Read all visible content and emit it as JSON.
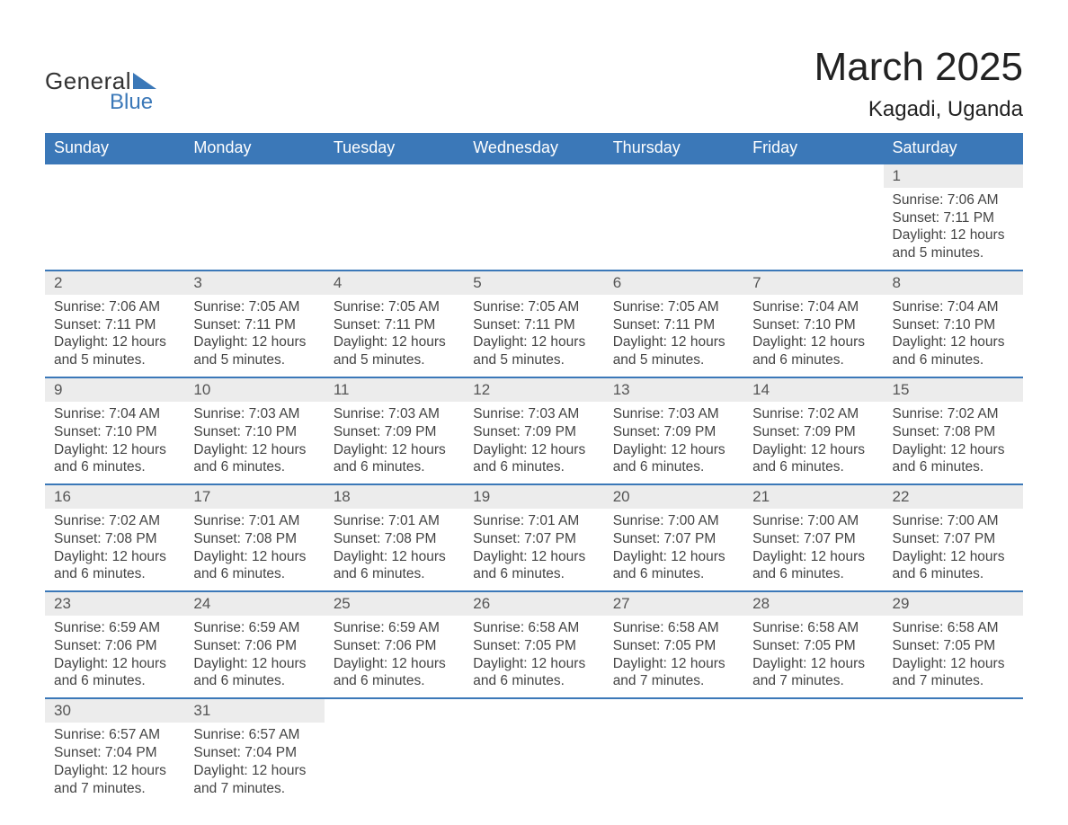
{
  "logo": {
    "word1": "General",
    "word2": "Blue",
    "color_general": "#333333",
    "color_blue": "#3b78b8"
  },
  "title": "March 2025",
  "location": "Kagadi, Uganda",
  "header_bg": "#3b78b8",
  "header_fg": "#ffffff",
  "daynum_bg": "#ececec",
  "row_border": "#3b78b8",
  "text_color": "#444444",
  "columns": [
    "Sunday",
    "Monday",
    "Tuesday",
    "Wednesday",
    "Thursday",
    "Friday",
    "Saturday"
  ],
  "weeks": [
    {
      "nums": [
        "",
        "",
        "",
        "",
        "",
        "",
        "1"
      ],
      "data": [
        "",
        "",
        "",
        "",
        "",
        "",
        "Sunrise: 7:06 AM\nSunset: 7:11 PM\nDaylight: 12 hours and 5 minutes."
      ]
    },
    {
      "nums": [
        "2",
        "3",
        "4",
        "5",
        "6",
        "7",
        "8"
      ],
      "data": [
        "Sunrise: 7:06 AM\nSunset: 7:11 PM\nDaylight: 12 hours and 5 minutes.",
        "Sunrise: 7:05 AM\nSunset: 7:11 PM\nDaylight: 12 hours and 5 minutes.",
        "Sunrise: 7:05 AM\nSunset: 7:11 PM\nDaylight: 12 hours and 5 minutes.",
        "Sunrise: 7:05 AM\nSunset: 7:11 PM\nDaylight: 12 hours and 5 minutes.",
        "Sunrise: 7:05 AM\nSunset: 7:11 PM\nDaylight: 12 hours and 5 minutes.",
        "Sunrise: 7:04 AM\nSunset: 7:10 PM\nDaylight: 12 hours and 6 minutes.",
        "Sunrise: 7:04 AM\nSunset: 7:10 PM\nDaylight: 12 hours and 6 minutes."
      ]
    },
    {
      "nums": [
        "9",
        "10",
        "11",
        "12",
        "13",
        "14",
        "15"
      ],
      "data": [
        "Sunrise: 7:04 AM\nSunset: 7:10 PM\nDaylight: 12 hours and 6 minutes.",
        "Sunrise: 7:03 AM\nSunset: 7:10 PM\nDaylight: 12 hours and 6 minutes.",
        "Sunrise: 7:03 AM\nSunset: 7:09 PM\nDaylight: 12 hours and 6 minutes.",
        "Sunrise: 7:03 AM\nSunset: 7:09 PM\nDaylight: 12 hours and 6 minutes.",
        "Sunrise: 7:03 AM\nSunset: 7:09 PM\nDaylight: 12 hours and 6 minutes.",
        "Sunrise: 7:02 AM\nSunset: 7:09 PM\nDaylight: 12 hours and 6 minutes.",
        "Sunrise: 7:02 AM\nSunset: 7:08 PM\nDaylight: 12 hours and 6 minutes."
      ]
    },
    {
      "nums": [
        "16",
        "17",
        "18",
        "19",
        "20",
        "21",
        "22"
      ],
      "data": [
        "Sunrise: 7:02 AM\nSunset: 7:08 PM\nDaylight: 12 hours and 6 minutes.",
        "Sunrise: 7:01 AM\nSunset: 7:08 PM\nDaylight: 12 hours and 6 minutes.",
        "Sunrise: 7:01 AM\nSunset: 7:08 PM\nDaylight: 12 hours and 6 minutes.",
        "Sunrise: 7:01 AM\nSunset: 7:07 PM\nDaylight: 12 hours and 6 minutes.",
        "Sunrise: 7:00 AM\nSunset: 7:07 PM\nDaylight: 12 hours and 6 minutes.",
        "Sunrise: 7:00 AM\nSunset: 7:07 PM\nDaylight: 12 hours and 6 minutes.",
        "Sunrise: 7:00 AM\nSunset: 7:07 PM\nDaylight: 12 hours and 6 minutes."
      ]
    },
    {
      "nums": [
        "23",
        "24",
        "25",
        "26",
        "27",
        "28",
        "29"
      ],
      "data": [
        "Sunrise: 6:59 AM\nSunset: 7:06 PM\nDaylight: 12 hours and 6 minutes.",
        "Sunrise: 6:59 AM\nSunset: 7:06 PM\nDaylight: 12 hours and 6 minutes.",
        "Sunrise: 6:59 AM\nSunset: 7:06 PM\nDaylight: 12 hours and 6 minutes.",
        "Sunrise: 6:58 AM\nSunset: 7:05 PM\nDaylight: 12 hours and 6 minutes.",
        "Sunrise: 6:58 AM\nSunset: 7:05 PM\nDaylight: 12 hours and 7 minutes.",
        "Sunrise: 6:58 AM\nSunset: 7:05 PM\nDaylight: 12 hours and 7 minutes.",
        "Sunrise: 6:58 AM\nSunset: 7:05 PM\nDaylight: 12 hours and 7 minutes."
      ]
    },
    {
      "nums": [
        "30",
        "31",
        "",
        "",
        "",
        "",
        ""
      ],
      "data": [
        "Sunrise: 6:57 AM\nSunset: 7:04 PM\nDaylight: 12 hours and 7 minutes.",
        "Sunrise: 6:57 AM\nSunset: 7:04 PM\nDaylight: 12 hours and 7 minutes.",
        "",
        "",
        "",
        "",
        ""
      ]
    }
  ]
}
